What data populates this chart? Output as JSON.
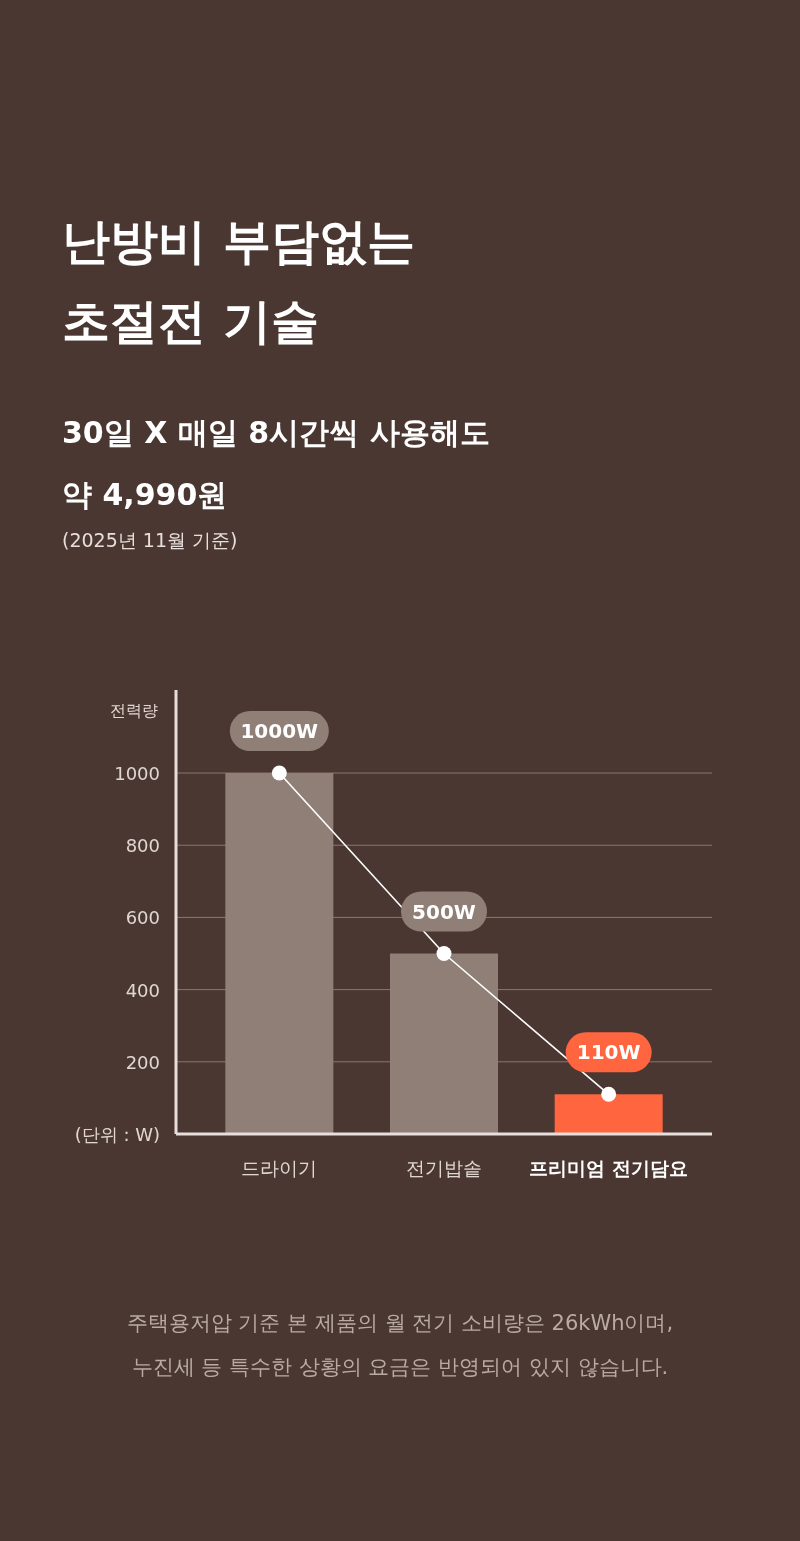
{
  "chart_data": {
    "type": "bar",
    "title": "난방비 부담없는\n초절전 기술",
    "subtitle": "30일 X 매일 8시간씩 사용해도\n약 4,990원",
    "annotations": [
      "(2025년 11월 기준)",
      "주택용저압 기준 본 제품의 월 전기 소비량은  26kWh이며,\n누진세 등 특수한 상황의 요금은 반영되어 있지 않습니다."
    ],
    "ylabel": "전력량",
    "categories": [
      "드라이기",
      "전기밥솥",
      "프리미엄 전기담요"
    ],
    "series": [
      {
        "colors": [
          "#8f7f76",
          "#8f7f76",
          "#ff6640"
        ],
        "values": [
          1000,
          500,
          110
        ]
      },
      {
        "type": "line",
        "color": "#ffffff",
        "marker": "circle",
        "values": [
          1000,
          500,
          110
        ],
        "value_labels": [
          "1000W",
          "500W",
          "110W"
        ]
      }
    ],
    "ylim": [
      0,
      1230
    ],
    "yticks": [
      {
        "value": 0,
        "label": "(단위 : W)"
      },
      200,
      400,
      600,
      800,
      1000
    ],
    "grid": "y"
  }
}
